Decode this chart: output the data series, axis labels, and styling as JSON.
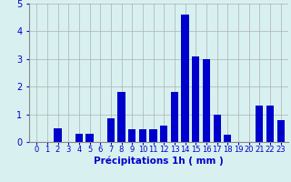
{
  "categories": [
    0,
    1,
    2,
    3,
    4,
    5,
    6,
    7,
    8,
    9,
    10,
    11,
    12,
    13,
    14,
    15,
    16,
    17,
    18,
    19,
    20,
    21,
    22,
    23
  ],
  "values": [
    0,
    0,
    0.5,
    0,
    0.3,
    0.3,
    0,
    0.85,
    1.8,
    0.45,
    0.45,
    0.45,
    0.6,
    1.8,
    4.6,
    3.1,
    3.0,
    1.0,
    0.25,
    0,
    0,
    1.3,
    1.3,
    0.8
  ],
  "bar_color": "#0000cc",
  "background_color": "#d8f0f0",
  "grid_color": "#b0b0b0",
  "xlabel": "Précipitations 1h ( mm )",
  "ylim": [
    0,
    5
  ],
  "yticks": [
    0,
    1,
    2,
    3,
    4,
    5
  ],
  "xlabel_fontsize": 7.5,
  "tick_fontsize": 6
}
